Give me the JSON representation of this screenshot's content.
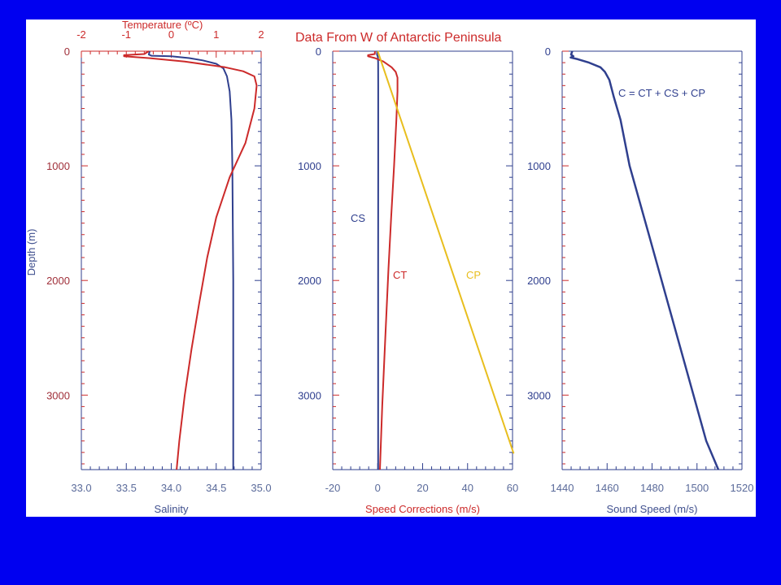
{
  "figure_title": "Data From W of Antarctic Peninsula",
  "colors": {
    "background": "#0000f0",
    "panel": "#ffffff",
    "navy": "#2f3f8e",
    "red": "#cc2a2a",
    "gold": "#e8be1e"
  },
  "chart_data": [
    {
      "type": "line",
      "panel": "left",
      "title": "",
      "ylabel": "Depth (m)",
      "y_reversed": true,
      "ylim": [
        0,
        3650
      ],
      "yticks": [
        "0",
        "1000",
        "2000",
        "3000"
      ],
      "x_bottom": {
        "label": "Salinity",
        "lim": [
          33.0,
          35.0
        ],
        "ticks": [
          "33.0",
          "33.5",
          "34.0",
          "34.5",
          "35.0"
        ]
      },
      "x_top": {
        "label": "Temperature (ºC)",
        "lim": [
          -2,
          2
        ],
        "ticks": [
          "-2",
          "-1",
          "0",
          "1",
          "2"
        ]
      },
      "series": [
        {
          "axis": "bottom",
          "color": "#2f3f8e",
          "points": [
            [
              33.76,
              0
            ],
            [
              33.75,
              30
            ],
            [
              33.78,
              40
            ],
            [
              34.0,
              45
            ],
            [
              34.2,
              60
            ],
            [
              34.35,
              80
            ],
            [
              34.5,
              110
            ],
            [
              34.58,
              150
            ],
            [
              34.62,
              220
            ],
            [
              34.65,
              350
            ],
            [
              34.67,
              600
            ],
            [
              34.68,
              1000
            ],
            [
              34.69,
              2000
            ],
            [
              34.69,
              3000
            ],
            [
              34.69,
              3650
            ]
          ]
        },
        {
          "axis": "top",
          "color": "#cc2a2a",
          "points": [
            [
              -0.5,
              0
            ],
            [
              -0.6,
              25
            ],
            [
              -1.05,
              35
            ],
            [
              -1.05,
              45
            ],
            [
              -0.5,
              60
            ],
            [
              0.3,
              90
            ],
            [
              1.2,
              140
            ],
            [
              1.6,
              175
            ],
            [
              1.85,
              220
            ],
            [
              1.9,
              300
            ],
            [
              1.85,
              500
            ],
            [
              1.65,
              800
            ],
            [
              1.3,
              1100
            ],
            [
              1.0,
              1450
            ],
            [
              0.8,
              1800
            ],
            [
              0.62,
              2200
            ],
            [
              0.45,
              2600
            ],
            [
              0.3,
              3000
            ],
            [
              0.18,
              3400
            ],
            [
              0.12,
              3650
            ]
          ]
        }
      ]
    },
    {
      "type": "line",
      "panel": "middle",
      "title": "",
      "y_reversed": true,
      "ylim": [
        0,
        3650
      ],
      "yticks": [
        "0",
        "1000",
        "2000",
        "3000"
      ],
      "x_bottom": {
        "label": "Speed Corrections (m/s)",
        "lim": [
          -20,
          60
        ],
        "ticks": [
          "-20",
          "0",
          "20",
          "40",
          "60"
        ]
      },
      "series": [
        {
          "name": "CS",
          "color": "#2f3f8e",
          "points": [
            [
              -0.2,
              0
            ],
            [
              -0.3,
              30
            ],
            [
              0.1,
              50
            ],
            [
              0.2,
              100
            ],
            [
              0.25,
              300
            ],
            [
              0.25,
              1000
            ],
            [
              0.2,
              2000
            ],
            [
              0.2,
              3000
            ],
            [
              0.2,
              3650
            ]
          ]
        },
        {
          "name": "CT",
          "color": "#cc2a2a",
          "points": [
            [
              -1.2,
              0
            ],
            [
              -1.3,
              25
            ],
            [
              -4.3,
              35
            ],
            [
              -4.3,
              45
            ],
            [
              -1.2,
              60
            ],
            [
              2.5,
              90
            ],
            [
              6.2,
              140
            ],
            [
              8.0,
              180
            ],
            [
              8.8,
              230
            ],
            [
              8.8,
              350
            ],
            [
              8.3,
              600
            ],
            [
              7.3,
              1000
            ],
            [
              6.0,
              1450
            ],
            [
              4.8,
              1900
            ],
            [
              3.4,
              2500
            ],
            [
              2.0,
              3100
            ],
            [
              1.0,
              3650
            ]
          ]
        },
        {
          "name": "CP",
          "color": "#e8be1e",
          "points": [
            [
              0,
              0
            ],
            [
              60.5,
              3510
            ]
          ]
        }
      ]
    },
    {
      "type": "line",
      "panel": "right",
      "title": "",
      "y_reversed": true,
      "ylim": [
        0,
        3650
      ],
      "yticks": [
        "0",
        "1000",
        "2000",
        "3000"
      ],
      "x_bottom": {
        "label": "Sound Speed (m/s)",
        "lim": [
          1440,
          1520
        ],
        "ticks": [
          "1440",
          "1460",
          "1480",
          "1500",
          "1520"
        ]
      },
      "series": [
        {
          "name": "C = CT + CS + CP",
          "color": "#2f3f8e",
          "points": [
            [
              1444.5,
              0
            ],
            [
              1444,
              30
            ],
            [
              1445,
              45
            ],
            [
              1443.8,
              55
            ],
            [
              1447,
              70
            ],
            [
              1452,
              100
            ],
            [
              1457,
              140
            ],
            [
              1459,
              180
            ],
            [
              1461,
              250
            ],
            [
              1463,
              400
            ],
            [
              1466,
              600
            ],
            [
              1470,
              1000
            ],
            [
              1478.6,
              1600
            ],
            [
              1487.1,
              2200
            ],
            [
              1495.6,
              2800
            ],
            [
              1504.1,
              3400
            ],
            [
              1509.5,
              3650
            ]
          ]
        }
      ]
    }
  ]
}
